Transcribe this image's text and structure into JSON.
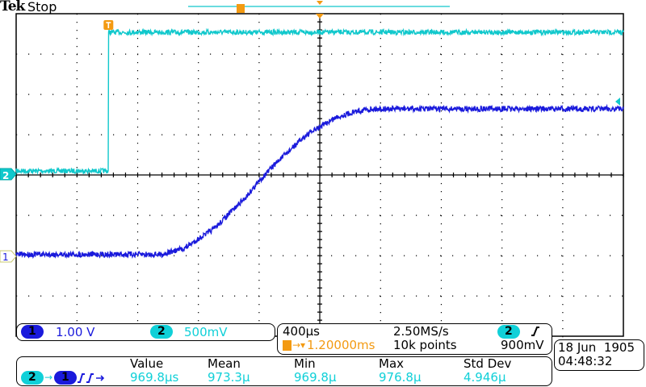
{
  "header": {
    "brand": "Tek",
    "status": "Stop"
  },
  "colors": {
    "ch1": "#1a1adc",
    "ch2": "#10c8cc",
    "trigger": "#f39a12"
  },
  "channels": [
    {
      "label": "1",
      "scale": "1.00 V"
    },
    {
      "label": "2",
      "scale": "500mV"
    }
  ],
  "timebase": {
    "scale": "400µs",
    "sample_rate": "2.50MS/s",
    "record_length": "10k points",
    "trigger_position": "1.20000ms",
    "trigger_source": "2",
    "trigger_slope": "rising",
    "trigger_level": "900mV"
  },
  "measurement": {
    "source_from": "2",
    "source_to": "1",
    "type_icon": "delay-rising-rising",
    "headers": [
      "Value",
      "Mean",
      "Min",
      "Max",
      "Std Dev"
    ],
    "values": [
      "969.8µs",
      "973.3µ",
      "969.8µ",
      "976.8µ",
      "4.946µ"
    ]
  },
  "datetime": {
    "date": "18 Jun  1905",
    "time": "04:48:32"
  },
  "chart_data": {
    "type": "line",
    "xlabel": "",
    "ylabel": "",
    "xlim": [
      -0.608,
      3.392
    ],
    "x_div": 0.4,
    "grid": true,
    "series": [
      {
        "channel": "1",
        "volts_per_div": 1.0,
        "x": [
          -0.608,
          0.0,
          0.35,
          0.5,
          0.7,
          0.9,
          1.0,
          1.1,
          1.3,
          1.5,
          1.65,
          1.75,
          3.392
        ],
        "y": [
          0.05,
          0.05,
          0.05,
          0.2,
          0.7,
          1.45,
          1.9,
          2.3,
          3.0,
          3.45,
          3.62,
          3.66,
          3.66
        ]
      },
      {
        "channel": "2",
        "volts_per_div": 0.5,
        "x": [
          -0.608,
          -0.001,
          0.0,
          3.392
        ],
        "y": [
          0.04,
          0.04,
          1.76,
          1.76
        ]
      }
    ]
  }
}
